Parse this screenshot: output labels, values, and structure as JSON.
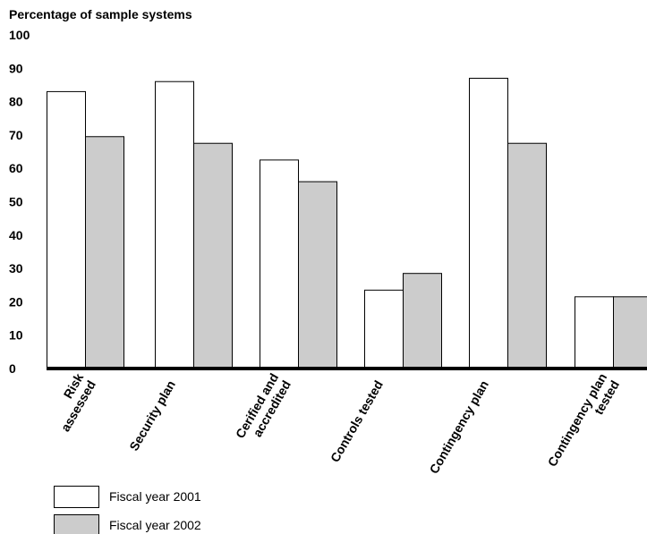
{
  "chart_data": {
    "type": "bar",
    "title": "",
    "ylabel": "Percentage of sample systems",
    "xlabel": "",
    "ylim": [
      0,
      100
    ],
    "yticks": [
      0,
      10,
      20,
      30,
      40,
      50,
      60,
      70,
      80,
      90,
      100
    ],
    "categories": [
      [
        "Risk",
        "assessed"
      ],
      [
        "Security plan"
      ],
      [
        "Cerified and",
        "accredited"
      ],
      [
        "Controls tested"
      ],
      [
        "Contingency plan"
      ],
      [
        "Contingency plan",
        "tested"
      ]
    ],
    "series": [
      {
        "name": "Fiscal year 2001",
        "color": "#ffffff",
        "values": [
          83,
          86,
          62.5,
          23.5,
          87,
          21.5
        ]
      },
      {
        "name": "Fiscal year 2002",
        "color": "#cccccc",
        "values": [
          69.5,
          67.5,
          56,
          28.5,
          67.5,
          21.5
        ]
      }
    ],
    "grid": false,
    "legend_position": "bottom-left"
  }
}
